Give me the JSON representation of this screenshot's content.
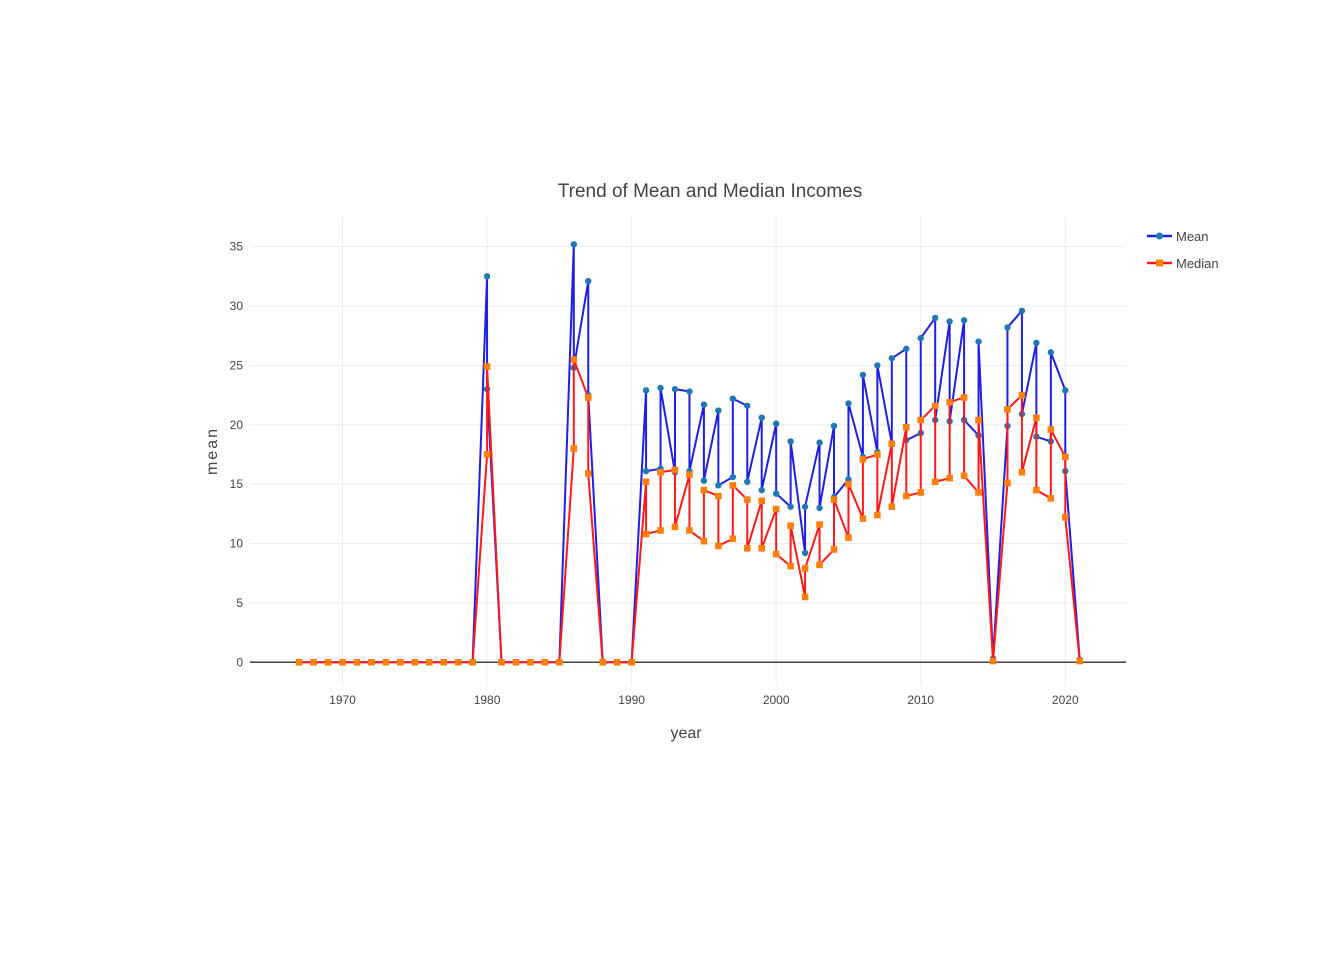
{
  "chart_data": {
    "type": "line",
    "title": "Trend of Mean and Median Incomes",
    "xlabel": "year",
    "ylabel": "mean",
    "xlim": [
      1963.6,
      1964.2
    ],
    "xaxis_range": [
      1963.6,
      2024.2
    ],
    "ylim": [
      -2,
      37.5
    ],
    "xticks": [
      1970,
      1980,
      1990,
      2000,
      2010,
      2020
    ],
    "yticks": [
      0,
      5,
      10,
      15,
      20,
      25,
      30,
      35
    ],
    "grid": true,
    "legend_position": "top-right",
    "series": [
      {
        "name": "Mean",
        "color": "#1f1fe6",
        "marker_color": "#1f77b4",
        "points": [
          [
            1967,
            0
          ],
          [
            1968,
            0
          ],
          [
            1969,
            0
          ],
          [
            1970,
            0
          ],
          [
            1971,
            0
          ],
          [
            1972,
            0
          ],
          [
            1973,
            0
          ],
          [
            1974,
            0
          ],
          [
            1975,
            0
          ],
          [
            1976,
            0
          ],
          [
            1977,
            0
          ],
          [
            1978,
            0
          ],
          [
            1979,
            0
          ],
          [
            1980,
            32.5
          ],
          [
            1980,
            23.0
          ],
          [
            1981,
            0
          ],
          [
            1982,
            0
          ],
          [
            1983,
            0
          ],
          [
            1984,
            0
          ],
          [
            1985,
            0
          ],
          [
            1986,
            35.2
          ],
          [
            1986,
            24.8
          ],
          [
            1987,
            32.1
          ],
          [
            1987,
            22.5
          ],
          [
            1988,
            0
          ],
          [
            1989,
            0
          ],
          [
            1990,
            0
          ],
          [
            1991,
            22.9
          ],
          [
            1991,
            16.1
          ],
          [
            1992,
            16.3
          ],
          [
            1992,
            23.1
          ],
          [
            1993,
            16.0
          ],
          [
            1993,
            23.0
          ],
          [
            1994,
            22.8
          ],
          [
            1994,
            16.1
          ],
          [
            1995,
            21.7
          ],
          [
            1995,
            15.3
          ],
          [
            1996,
            21.2
          ],
          [
            1996,
            14.9
          ],
          [
            1997,
            15.6
          ],
          [
            1997,
            22.2
          ],
          [
            1998,
            21.6
          ],
          [
            1998,
            15.2
          ],
          [
            1999,
            20.6
          ],
          [
            1999,
            14.5
          ],
          [
            2000,
            20.1
          ],
          [
            2000,
            14.2
          ],
          [
            2001,
            13.1
          ],
          [
            2001,
            18.6
          ],
          [
            2002,
            9.2
          ],
          [
            2002,
            13.1
          ],
          [
            2003,
            18.5
          ],
          [
            2003,
            13.0
          ],
          [
            2004,
            19.9
          ],
          [
            2004,
            13.9
          ],
          [
            2005,
            15.4
          ],
          [
            2005,
            21.8
          ],
          [
            2006,
            17.3
          ],
          [
            2006,
            24.2
          ],
          [
            2007,
            17.7
          ],
          [
            2007,
            25.0
          ],
          [
            2008,
            18.4
          ],
          [
            2008,
            25.6
          ],
          [
            2009,
            26.4
          ],
          [
            2009,
            18.7
          ],
          [
            2010,
            19.3
          ],
          [
            2010,
            27.3
          ],
          [
            2011,
            29.0
          ],
          [
            2011,
            20.4
          ],
          [
            2012,
            28.7
          ],
          [
            2012,
            20.3
          ],
          [
            2013,
            28.8
          ],
          [
            2013,
            20.4
          ],
          [
            2014,
            19.1
          ],
          [
            2014,
            27.0
          ],
          [
            2015,
            0.3
          ],
          [
            2016,
            19.9
          ],
          [
            2016,
            28.2
          ],
          [
            2017,
            29.6
          ],
          [
            2017,
            20.9
          ],
          [
            2018,
            26.9
          ],
          [
            2018,
            19.0
          ],
          [
            2019,
            18.6
          ],
          [
            2019,
            26.1
          ],
          [
            2020,
            22.9
          ],
          [
            2020,
            16.1
          ],
          [
            2021,
            0.2
          ]
        ]
      },
      {
        "name": "Median",
        "color": "#ff1a1a",
        "marker_color": "#ff7f0e",
        "points": [
          [
            1967,
            0
          ],
          [
            1968,
            0
          ],
          [
            1969,
            0
          ],
          [
            1970,
            0
          ],
          [
            1971,
            0
          ],
          [
            1972,
            0
          ],
          [
            1973,
            0
          ],
          [
            1974,
            0
          ],
          [
            1975,
            0
          ],
          [
            1976,
            0
          ],
          [
            1977,
            0
          ],
          [
            1978,
            0
          ],
          [
            1979,
            0
          ],
          [
            1980,
            17.5
          ],
          [
            1980,
            24.9
          ],
          [
            1981,
            0
          ],
          [
            1982,
            0
          ],
          [
            1983,
            0
          ],
          [
            1984,
            0
          ],
          [
            1985,
            0
          ],
          [
            1986,
            18.0
          ],
          [
            1986,
            25.5
          ],
          [
            1987,
            22.3
          ],
          [
            1987,
            15.9
          ],
          [
            1988,
            0
          ],
          [
            1989,
            0
          ],
          [
            1990,
            0
          ],
          [
            1991,
            15.2
          ],
          [
            1991,
            10.8
          ],
          [
            1992,
            11.1
          ],
          [
            1992,
            16.0
          ],
          [
            1993,
            16.2
          ],
          [
            1993,
            11.4
          ],
          [
            1994,
            15.8
          ],
          [
            1994,
            11.1
          ],
          [
            1995,
            10.2
          ],
          [
            1995,
            14.5
          ],
          [
            1996,
            14.0
          ],
          [
            1996,
            9.8
          ],
          [
            1997,
            10.4
          ],
          [
            1997,
            14.9
          ],
          [
            1998,
            13.7
          ],
          [
            1998,
            9.6
          ],
          [
            1999,
            13.6
          ],
          [
            1999,
            9.6
          ],
          [
            2000,
            12.9
          ],
          [
            2000,
            9.1
          ],
          [
            2001,
            8.1
          ],
          [
            2001,
            11.5
          ],
          [
            2002,
            5.5
          ],
          [
            2002,
            7.9
          ],
          [
            2003,
            11.6
          ],
          [
            2003,
            8.2
          ],
          [
            2004,
            9.5
          ],
          [
            2004,
            13.7
          ],
          [
            2005,
            10.5
          ],
          [
            2005,
            15.0
          ],
          [
            2006,
            12.1
          ],
          [
            2006,
            17.1
          ],
          [
            2007,
            17.5
          ],
          [
            2007,
            12.4
          ],
          [
            2008,
            18.4
          ],
          [
            2008,
            13.1
          ],
          [
            2009,
            19.8
          ],
          [
            2009,
            14.0
          ],
          [
            2010,
            14.3
          ],
          [
            2010,
            20.4
          ],
          [
            2011,
            21.6
          ],
          [
            2011,
            15.2
          ],
          [
            2012,
            15.5
          ],
          [
            2012,
            21.9
          ],
          [
            2013,
            22.3
          ],
          [
            2013,
            15.7
          ],
          [
            2014,
            14.3
          ],
          [
            2014,
            20.4
          ],
          [
            2015,
            0.1
          ],
          [
            2016,
            15.1
          ],
          [
            2016,
            21.3
          ],
          [
            2017,
            22.5
          ],
          [
            2017,
            16.0
          ],
          [
            2018,
            20.6
          ],
          [
            2018,
            14.5
          ],
          [
            2019,
            13.8
          ],
          [
            2019,
            19.6
          ],
          [
            2020,
            17.3
          ],
          [
            2020,
            12.2
          ],
          [
            2021,
            0.1
          ]
        ]
      }
    ]
  }
}
